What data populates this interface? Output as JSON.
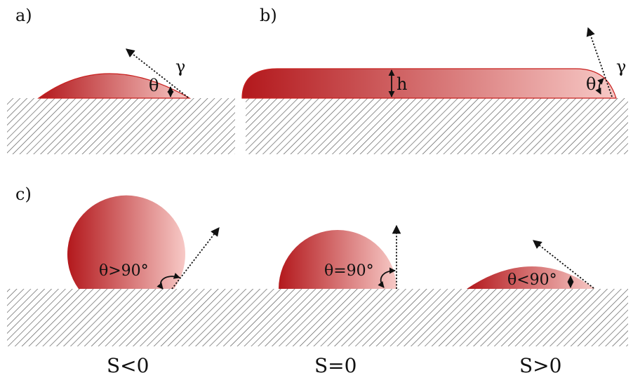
{
  "colors": {
    "drop_dark": "#b3181c",
    "drop_light": "#f7c9c6",
    "drop_edge": "#c8201f",
    "substrate_hatch": "#555555",
    "text": "#111111"
  },
  "panel_a": {
    "label": "a)",
    "tension_symbol": "γ",
    "angle_symbol": "θ"
  },
  "panel_b": {
    "label": "b)",
    "thickness_symbol": "h",
    "tension_symbol": "γ",
    "angle_symbol": "θ"
  },
  "panel_c": {
    "label": "c)",
    "drops": [
      {
        "angle_label": "θ>90°",
        "spreading_label": "S<0"
      },
      {
        "angle_label": "θ=90°",
        "spreading_label": "S=0"
      },
      {
        "angle_label": "θ<90°",
        "spreading_label": "S>0"
      }
    ]
  }
}
